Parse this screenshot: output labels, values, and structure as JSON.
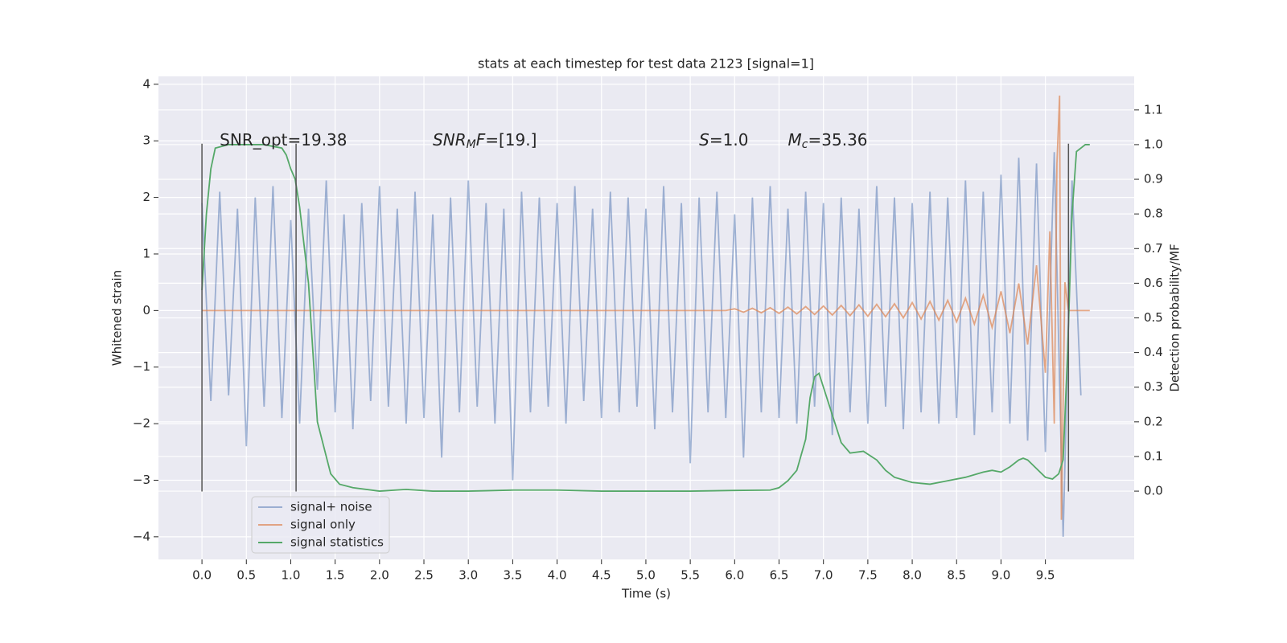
{
  "chart_data": {
    "type": "line",
    "title": "stats at each timestep for test data 2123 [signal=1]",
    "x_label": "Time (s)",
    "y_label": "Whitened strain",
    "y2_label": "Detection probability/MF",
    "xlim": [
      -0.49,
      10.5
    ],
    "ylim": [
      -4.4,
      4.14
    ],
    "y2lim": [
      -0.197,
      1.197
    ],
    "xticks": [
      {
        "value": 0,
        "label": "0.0"
      },
      0.5,
      {
        "value": 1,
        "label": "1.0"
      },
      1.5,
      {
        "value": 2,
        "label": "2.0"
      },
      2.5,
      {
        "value": 3,
        "label": "3.0"
      },
      3.5,
      {
        "value": 4,
        "label": "4.0"
      },
      4.5,
      {
        "value": 5,
        "label": "5.0"
      },
      5.5,
      {
        "value": 6,
        "label": "6.0"
      },
      6.5,
      {
        "value": 7,
        "label": "7.0"
      },
      7.5,
      {
        "value": 8,
        "label": "8.0"
      },
      8.5,
      {
        "value": 9,
        "label": "9.0"
      },
      9.5
    ],
    "yticks": [
      {
        "value": -4,
        "label": "−4"
      },
      {
        "value": -3,
        "label": "−3"
      },
      {
        "value": -2,
        "label": "−2"
      },
      {
        "value": -1,
        "label": "−1"
      },
      0,
      1,
      2,
      3,
      4
    ],
    "y2ticks": [
      {
        "value": 0,
        "label": "0.0"
      },
      0.1,
      0.2,
      0.3,
      0.4,
      0.5,
      0.6,
      0.7,
      0.8,
      0.9,
      {
        "value": 1,
        "label": "1.0"
      },
      1.1
    ],
    "grid": true,
    "legend": "lower left",
    "vlines": [
      0,
      1.06,
      9.76
    ],
    "vline_ylim": [
      -3.2,
      2.95
    ],
    "vline_color": "#555555",
    "annotations": [
      {
        "x": 0.2,
        "y": 3,
        "parts": [
          {
            "text": "SNR_opt=19.38"
          }
        ]
      },
      {
        "x": 2.6,
        "y": 3,
        "parts": [
          {
            "text": "SNR",
            "italic": true
          },
          {
            "text": "M",
            "italic": true,
            "sub": true
          },
          {
            "text": "F",
            "italic": true
          },
          {
            "text": "=[19.]"
          }
        ]
      },
      {
        "x": 5.6,
        "y": 3,
        "parts": [
          {
            "text": "S",
            "italic": true
          },
          {
            "text": "=1.0"
          }
        ]
      },
      {
        "x": 6.6,
        "y": 3,
        "parts": [
          {
            "text": "M",
            "italic": true
          },
          {
            "text": "c",
            "italic": true,
            "sub": true
          },
          {
            "text": "=35.36"
          }
        ]
      }
    ],
    "series": [
      {
        "name": "signal+ noise",
        "color": "#4c72b0",
        "alpha": 0.5,
        "x": [
          0,
          0.1,
          0.2,
          0.3,
          0.4,
          0.5,
          0.6,
          0.7,
          0.8,
          0.9,
          1,
          1.1,
          1.2,
          1.3,
          1.4,
          1.5,
          1.6,
          1.7,
          1.8,
          1.9,
          2,
          2.1,
          2.2,
          2.3,
          2.4,
          2.5,
          2.6,
          2.7,
          2.8,
          2.9,
          3,
          3.1,
          3.2,
          3.3,
          3.4,
          3.5,
          3.6,
          3.7,
          3.8,
          3.9,
          4,
          4.1,
          4.2,
          4.3,
          4.4,
          4.5,
          4.6,
          4.7,
          4.8,
          4.9,
          5,
          5.1,
          5.2,
          5.3,
          5.4,
          5.5,
          5.6,
          5.7,
          5.8,
          5.9,
          6,
          6.1,
          6.2,
          6.3,
          6.4,
          6.5,
          6.6,
          6.7,
          6.8,
          6.9,
          7,
          7.1,
          7.2,
          7.3,
          7.4,
          7.5,
          7.6,
          7.7,
          7.8,
          7.9,
          8,
          8.1,
          8.2,
          8.3,
          8.4,
          8.5,
          8.6,
          8.7,
          8.8,
          8.9,
          9,
          9.1,
          9.2,
          9.3,
          9.4,
          9.5,
          9.6,
          9.7,
          9.8,
          9.9
        ],
        "values": [
          1.9,
          -1.6,
          2.1,
          -1.5,
          1.8,
          -2.4,
          2.0,
          -1.7,
          2.2,
          -1.9,
          1.6,
          -2.0,
          1.8,
          -1.4,
          2.3,
          -1.8,
          1.7,
          -2.1,
          1.9,
          -1.6,
          2.2,
          -1.7,
          1.8,
          -2.0,
          2.1,
          -1.9,
          1.7,
          -2.6,
          2.0,
          -1.8,
          2.3,
          -1.7,
          1.9,
          -2.0,
          1.8,
          -3.0,
          2.1,
          -1.8,
          2.0,
          -1.7,
          1.9,
          -2.0,
          2.2,
          -1.6,
          1.8,
          -1.9,
          2.1,
          -1.8,
          2.0,
          -1.7,
          1.8,
          -2.1,
          2.2,
          -1.8,
          1.9,
          -2.7,
          2.0,
          -1.8,
          2.1,
          -1.9,
          1.7,
          -2.6,
          2.0,
          -1.8,
          2.2,
          -1.9,
          1.8,
          -2.0,
          2.1,
          -1.7,
          1.9,
          -2.2,
          2.0,
          -1.8,
          1.8,
          -2.0,
          2.2,
          -1.7,
          2.0,
          -2.1,
          1.9,
          -1.8,
          2.1,
          -2.0,
          2.0,
          -1.9,
          2.3,
          -2.2,
          2.1,
          -1.8,
          2.4,
          -2.0,
          2.7,
          -2.3,
          2.6,
          -2.5,
          2.8,
          -4.0,
          2.3,
          -1.5
        ]
      },
      {
        "name": "signal only",
        "color": "#dd8452",
        "alpha": 0.7,
        "x": [
          0,
          5.9,
          6,
          6.1,
          6.2,
          6.3,
          6.4,
          6.5,
          6.6,
          6.7,
          6.8,
          6.9,
          7,
          7.1,
          7.2,
          7.3,
          7.4,
          7.5,
          7.6,
          7.7,
          7.8,
          7.9,
          8,
          8.1,
          8.2,
          8.3,
          8.4,
          8.5,
          8.6,
          8.7,
          8.8,
          8.9,
          9,
          9.1,
          9.2,
          9.3,
          9.4,
          9.5,
          9.55,
          9.6,
          9.63,
          9.66,
          9.68,
          9.72,
          9.76,
          10
        ],
        "values": [
          0,
          0,
          0.03,
          -0.03,
          0.04,
          -0.04,
          0.05,
          -0.05,
          0.06,
          -0.06,
          0.07,
          -0.07,
          0.08,
          -0.08,
          0.09,
          -0.09,
          0.1,
          -0.1,
          0.11,
          -0.11,
          0.12,
          -0.13,
          0.14,
          -0.15,
          0.16,
          -0.17,
          0.18,
          -0.2,
          0.22,
          -0.24,
          0.27,
          -0.3,
          0.34,
          -0.4,
          0.48,
          -0.6,
          0.8,
          -1.1,
          1.4,
          -2.0,
          2.6,
          3.8,
          -3.7,
          0.5,
          0,
          0
        ]
      },
      {
        "name": "signal statistics",
        "color": "#55a868",
        "alpha": 1,
        "axis": "y2",
        "x": [
          0,
          0.05,
          0.1,
          0.15,
          0.3,
          0.5,
          0.7,
          0.9,
          0.95,
          1,
          1.05,
          1.1,
          1.2,
          1.3,
          1.4,
          1.45,
          1.55,
          1.7,
          2,
          2.3,
          2.6,
          3,
          3.5,
          4,
          4.5,
          5,
          5.5,
          6,
          6.4,
          6.5,
          6.6,
          6.7,
          6.8,
          6.85,
          6.9,
          6.95,
          7,
          7.1,
          7.2,
          7.3,
          7.45,
          7.6,
          7.7,
          7.8,
          8,
          8.2,
          8.4,
          8.6,
          8.8,
          8.9,
          9,
          9.1,
          9.2,
          9.25,
          9.3,
          9.4,
          9.5,
          9.58,
          9.65,
          9.7,
          9.75,
          9.8,
          9.85,
          9.95,
          10
        ],
        "values": [
          0.58,
          0.8,
          0.93,
          0.99,
          1,
          1,
          1,
          0.99,
          0.97,
          0.93,
          0.9,
          0.82,
          0.6,
          0.2,
          0.1,
          0.05,
          0.02,
          0.01,
          0,
          0.005,
          0,
          0,
          0.003,
          0.003,
          0,
          0,
          0,
          0.002,
          0.003,
          0.01,
          0.03,
          0.06,
          0.15,
          0.27,
          0.33,
          0.34,
          0.3,
          0.22,
          0.14,
          0.11,
          0.115,
          0.09,
          0.06,
          0.04,
          0.025,
          0.02,
          0.03,
          0.04,
          0.055,
          0.06,
          0.055,
          0.07,
          0.09,
          0.095,
          0.09,
          0.065,
          0.04,
          0.035,
          0.05,
          0.09,
          0.4,
          0.8,
          0.98,
          1,
          1
        ]
      }
    ]
  }
}
